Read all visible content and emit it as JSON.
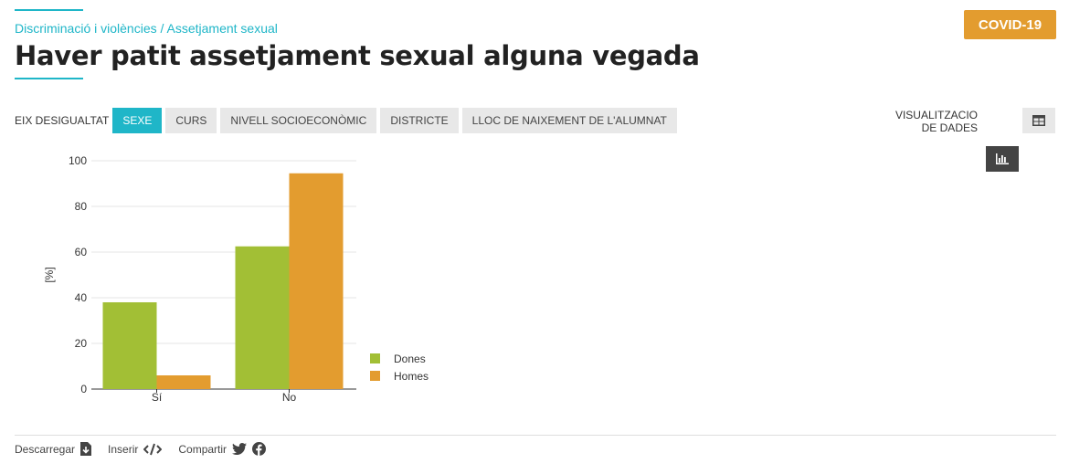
{
  "breadcrumb": "Discriminació i violències / Assetjament sexual",
  "title": "Haver patit assetjament sexual alguna vegada",
  "badge": "COVID-19",
  "axis_selector": {
    "label": "EIX DESIGUALTAT",
    "tabs": [
      {
        "label": "SEXE",
        "active": true
      },
      {
        "label": "CURS",
        "active": false
      },
      {
        "label": "NIVELL SOCIOECONÒMIC",
        "active": false
      },
      {
        "label": "DISTRICTE",
        "active": false
      },
      {
        "label": "LLOC DE NAIXEMENT DE L'ALUMNAT",
        "active": false
      }
    ]
  },
  "visualization": {
    "label_line1": "VISUALITZACIO",
    "label_line2": "DE DADES",
    "buttons": [
      {
        "icon": "bar-chart-icon",
        "active": true
      },
      {
        "icon": "table-icon",
        "active": false
      }
    ]
  },
  "chart_data": {
    "type": "bar",
    "categories": [
      "Sí",
      "No"
    ],
    "series": [
      {
        "name": "Dones",
        "values": [
          38,
          62.5
        ],
        "color": "#a2bf35"
      },
      {
        "name": "Homes",
        "values": [
          6,
          94.5
        ],
        "color": "#e39c2f"
      }
    ],
    "ylabel": "[%]",
    "ylim": [
      0,
      100
    ],
    "yticks": [
      0,
      20,
      40,
      60,
      80,
      100
    ],
    "grid": true,
    "legend_position": "right-bottom"
  },
  "footer": {
    "download": "Descarregar",
    "embed": "Inserir",
    "share": "Compartir"
  }
}
